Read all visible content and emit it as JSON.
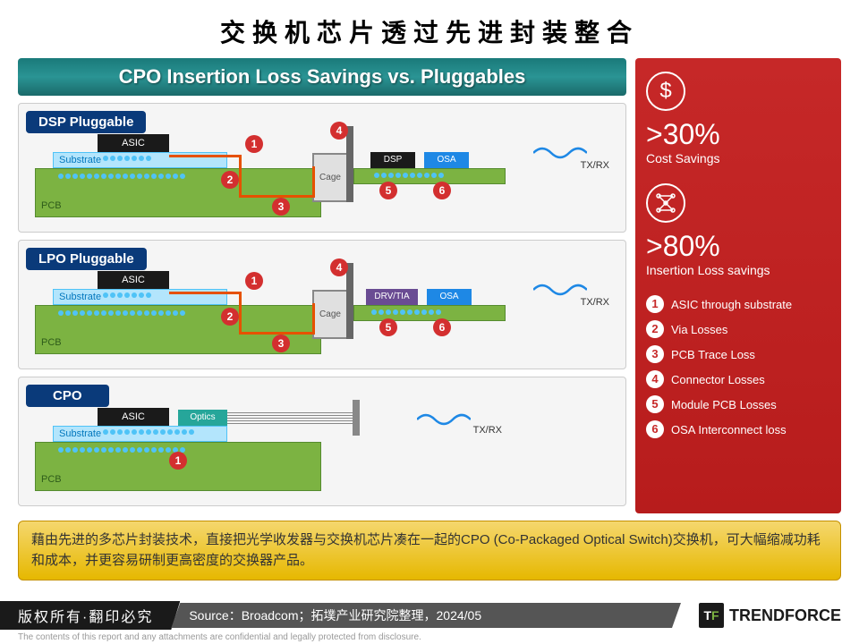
{
  "title": "交换机芯片透过先进封装整合",
  "banner": "CPO Insertion Loss Savings vs. Pluggables",
  "panels": {
    "dsp": {
      "label": "DSP Pluggable",
      "asic": "ASIC",
      "substrate": "Substrate",
      "pcb": "PCB",
      "cage": "Cage",
      "chips": [
        "DSP",
        "OSA"
      ],
      "txrx": "TX/RX",
      "markers": [
        1,
        2,
        3,
        4,
        5,
        6
      ]
    },
    "lpo": {
      "label": "LPO Pluggable",
      "asic": "ASIC",
      "substrate": "Substrate",
      "pcb": "PCB",
      "cage": "Cage",
      "chips": [
        "DRV/TIA",
        "OSA"
      ],
      "txrx": "TX/RX",
      "markers": [
        1,
        2,
        3,
        4,
        5,
        6
      ]
    },
    "cpo": {
      "label": "CPO",
      "asic": "ASIC",
      "substrate": "Substrate",
      "pcb": "PCB",
      "optics": "Optics",
      "txrx": "TX/RX",
      "markers": [
        1
      ]
    }
  },
  "stats": {
    "cost": {
      "value": ">30%",
      "label": "Cost Savings",
      "icon": "$"
    },
    "loss": {
      "value": ">80%",
      "label": "Insertion Loss savings",
      "icon": "⚛"
    }
  },
  "legend": [
    {
      "n": 1,
      "t": "ASIC through substrate"
    },
    {
      "n": 2,
      "t": "Via Losses"
    },
    {
      "n": 3,
      "t": "PCB Trace Loss"
    },
    {
      "n": 4,
      "t": "Connector Losses"
    },
    {
      "n": 5,
      "t": "Module PCB Losses"
    },
    {
      "n": 6,
      "t": "OSA Interconnect loss"
    }
  ],
  "description": "藉由先进的多芯片封装技术，直接把光学收发器与交换机芯片凑在一起的CPO (Co-Packaged Optical Switch)交换机，可大幅缩减功耗和成本，并更容易研制更高密度的交换器产品。",
  "footer": {
    "copyright": "版权所有·翻印必究",
    "source": "Source：Broadcom；拓墣产业研究院整理，2024/05",
    "logo": "TRENDFORCE",
    "disclaimer": "The contents of this report and any attachments are confidential and legally protected from disclosure."
  },
  "colors": {
    "marker": "#d32f2f",
    "pcb": "#7cb342",
    "substrate": "#b3e5fc",
    "asic": "#1a1a1a",
    "banner_grad": [
      "#1a7a7a",
      "#2a9494"
    ],
    "sidebar": "#c62828",
    "desc_grad": [
      "#f5d76e",
      "#e6b800"
    ],
    "wave": "#1e88e5",
    "trace": "#e65100"
  }
}
